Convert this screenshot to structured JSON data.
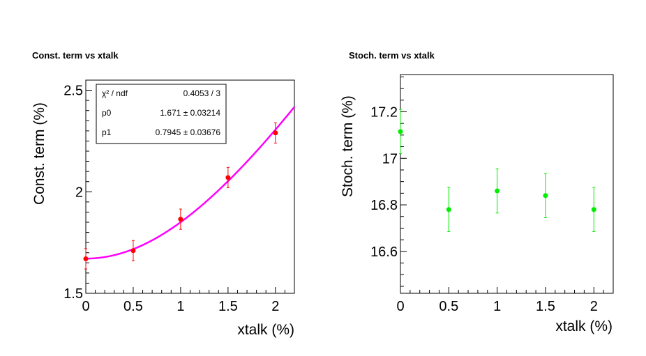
{
  "chart_data": [
    {
      "type": "scatter",
      "title": "Const. term vs xtalk",
      "xlabel": "xtalk (%)",
      "ylabel": "Const. term (%)",
      "xlim": [
        0,
        2.2
      ],
      "ylim": [
        1.5,
        2.55
      ],
      "xticks": [
        0,
        0.5,
        1,
        1.5,
        2
      ],
      "xtick_labels": [
        "0",
        "0.5",
        "1",
        "1.5",
        "2"
      ],
      "yticks": [
        1.5,
        2,
        2.5
      ],
      "ytick_labels": [
        "1.5",
        "2",
        "2.5"
      ],
      "marker_color": "#ff0000",
      "series": [
        {
          "name": "Const. term",
          "x": [
            0,
            0.5,
            1,
            1.5,
            2
          ],
          "y": [
            1.67,
            1.71,
            1.865,
            2.07,
            2.29
          ],
          "yerr": [
            0.05,
            0.05,
            0.05,
            0.05,
            0.05
          ]
        }
      ],
      "fit": {
        "function": "sqrt(p0^2 + (p1*x)^2)",
        "p0": 1.671,
        "p1": 0.7945,
        "color": "#ff00ff"
      },
      "stats_box": {
        "position": "top-left",
        "rows": [
          {
            "label": "χ² / ndf",
            "value": "0.4053 / 3"
          },
          {
            "label": "p0",
            "value": "1.671 ± 0.03214"
          },
          {
            "label": "p1",
            "value": "0.7945 ± 0.03676"
          }
        ]
      }
    },
    {
      "type": "scatter",
      "title": "Stoch. term vs xtalk",
      "xlabel": "xtalk (%)",
      "ylabel": "Stoch. term (%)",
      "xlim": [
        0,
        2.2
      ],
      "ylim": [
        16.42,
        17.36
      ],
      "xticks": [
        0,
        0.5,
        1,
        1.5,
        2
      ],
      "xtick_labels": [
        "0",
        "0.5",
        "1",
        "1.5",
        "2"
      ],
      "yticks": [
        16.6,
        16.8,
        17,
        17.2
      ],
      "ytick_labels": [
        "16.6",
        "16.8",
        "17",
        "17.2"
      ],
      "marker_color": "#00ee00",
      "series": [
        {
          "name": "Stoch. term",
          "x": [
            0,
            0.5,
            1,
            1.5,
            2
          ],
          "y": [
            17.115,
            16.78,
            16.86,
            16.84,
            16.78
          ],
          "yerr": [
            0.095,
            0.095,
            0.095,
            0.095,
            0.095
          ]
        }
      ]
    }
  ]
}
